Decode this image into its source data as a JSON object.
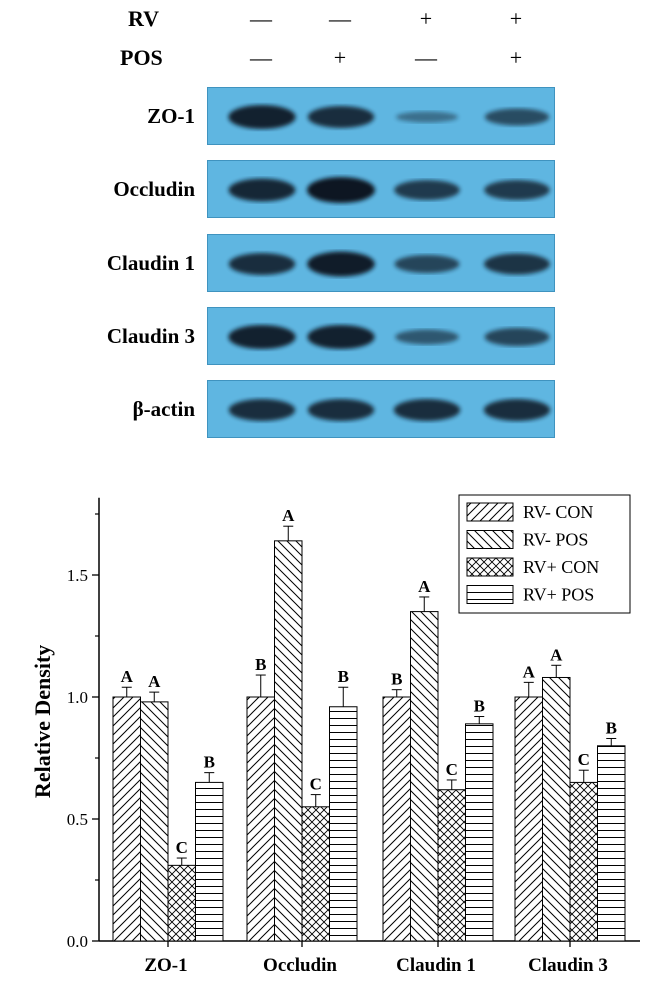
{
  "blot": {
    "conditions": [
      {
        "name": "RV",
        "marks": [
          "—",
          "—",
          "+",
          "+"
        ]
      },
      {
        "name": "POS",
        "marks": [
          "—",
          "+",
          "—",
          "+"
        ]
      }
    ],
    "panels": [
      {
        "label": "ZO-1",
        "intensity": [
          0.9,
          0.8,
          0.25,
          0.55
        ]
      },
      {
        "label": "Occludin",
        "intensity": [
          0.85,
          1.0,
          0.7,
          0.7
        ]
      },
      {
        "label": "Claudin 1",
        "intensity": [
          0.8,
          0.95,
          0.6,
          0.75
        ]
      },
      {
        "label": "Claudin 3",
        "intensity": [
          0.9,
          0.9,
          0.45,
          0.6
        ]
      },
      {
        "label": "β-actin",
        "intensity": [
          0.8,
          0.8,
          0.8,
          0.8
        ]
      }
    ],
    "colors": {
      "panel": "#5fb6e1",
      "band": "#0a1620"
    }
  },
  "chart_data": {
    "type": "bar",
    "categories": [
      "ZO-1",
      "Occludin",
      "Claudin 1",
      "Claudin 3"
    ],
    "ylabel": "Relative Density",
    "ylim": [
      0,
      1.8
    ],
    "yticks": [
      "0.0",
      "0.5",
      "1.0",
      "1.5"
    ],
    "legend_position": "top-right",
    "series": [
      {
        "name": "RV-  CON",
        "hatch": "diagonal-up",
        "values": [
          1.0,
          1.0,
          1.0,
          1.0
        ],
        "errors": [
          0.04,
          0.09,
          0.03,
          0.06
        ],
        "letters": [
          "A",
          "B",
          "B",
          "A"
        ]
      },
      {
        "name": "RV-  POS",
        "hatch": "diagonal-down",
        "values": [
          0.98,
          1.64,
          1.35,
          1.08
        ],
        "errors": [
          0.04,
          0.06,
          0.06,
          0.05
        ],
        "letters": [
          "A",
          "A",
          "A",
          "A"
        ]
      },
      {
        "name": "RV+ CON",
        "hatch": "cross",
        "values": [
          0.31,
          0.55,
          0.62,
          0.65
        ],
        "errors": [
          0.03,
          0.05,
          0.04,
          0.05
        ],
        "letters": [
          "C",
          "C",
          "C",
          "C"
        ]
      },
      {
        "name": "RV+ POS",
        "hatch": "horizontal",
        "values": [
          0.65,
          0.96,
          0.89,
          0.8
        ],
        "errors": [
          0.04,
          0.08,
          0.03,
          0.03
        ],
        "letters": [
          "B",
          "B",
          "B",
          "B"
        ]
      }
    ]
  }
}
